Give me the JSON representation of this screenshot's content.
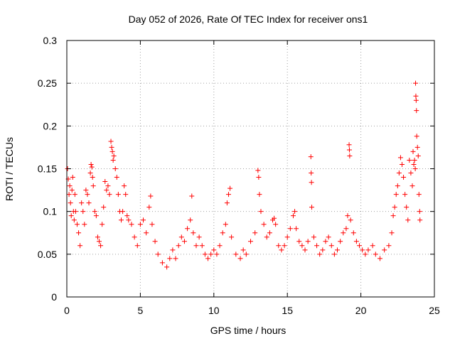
{
  "chart_data": {
    "type": "scatter",
    "title": "Day 052 of 2026, Rate Of TEC Index for receiver ons1",
    "xlabel": "GPS time / hours",
    "ylabel": "ROTI / TECUs",
    "xlim": [
      0,
      25
    ],
    "ylim": [
      0,
      0.3
    ],
    "x_ticks": [
      "0",
      "5",
      "10",
      "15",
      "20",
      "25"
    ],
    "y_ticks": [
      "0",
      "0.05",
      "0.1",
      "0.15",
      "0.2",
      "0.25",
      "0.3"
    ],
    "x_tick_values": [
      0,
      5,
      10,
      15,
      20,
      25
    ],
    "y_tick_values": [
      0,
      0.05,
      0.1,
      0.15,
      0.2,
      0.25,
      0.3
    ],
    "grid": true,
    "marker": "+",
    "marker_color": "#ff0000",
    "series": [
      {
        "points": [
          [
            0.05,
            0.15
          ],
          [
            0.1,
            0.138
          ],
          [
            0.15,
            0.12
          ],
          [
            0.2,
            0.13
          ],
          [
            0.25,
            0.11
          ],
          [
            0.3,
            0.095
          ],
          [
            0.35,
            0.125
          ],
          [
            0.4,
            0.14
          ],
          [
            0.45,
            0.1
          ],
          [
            0.5,
            0.09
          ],
          [
            0.55,
            0.12
          ],
          [
            0.6,
            0.1
          ],
          [
            0.7,
            0.085
          ],
          [
            0.8,
            0.075
          ],
          [
            0.9,
            0.06
          ],
          [
            1.0,
            0.11
          ],
          [
            1.1,
            0.1
          ],
          [
            1.2,
            0.085
          ],
          [
            1.3,
            0.125
          ],
          [
            1.4,
            0.12
          ],
          [
            1.5,
            0.11
          ],
          [
            1.6,
            0.145
          ],
          [
            1.65,
            0.155
          ],
          [
            1.7,
            0.152
          ],
          [
            1.75,
            0.14
          ],
          [
            1.8,
            0.13
          ],
          [
            1.9,
            0.1
          ],
          [
            2.0,
            0.095
          ],
          [
            2.1,
            0.07
          ],
          [
            2.2,
            0.065
          ],
          [
            2.3,
            0.06
          ],
          [
            2.4,
            0.085
          ],
          [
            2.5,
            0.105
          ],
          [
            2.6,
            0.135
          ],
          [
            2.7,
            0.125
          ],
          [
            2.8,
            0.13
          ],
          [
            2.9,
            0.12
          ],
          [
            3.0,
            0.182
          ],
          [
            3.05,
            0.175
          ],
          [
            3.1,
            0.17
          ],
          [
            3.15,
            0.16
          ],
          [
            3.2,
            0.165
          ],
          [
            3.3,
            0.15
          ],
          [
            3.4,
            0.14
          ],
          [
            3.5,
            0.12
          ],
          [
            3.6,
            0.1
          ],
          [
            3.7,
            0.09
          ],
          [
            3.8,
            0.1
          ],
          [
            3.9,
            0.13
          ],
          [
            4.0,
            0.12
          ],
          [
            4.1,
            0.095
          ],
          [
            4.2,
            0.09
          ],
          [
            4.4,
            0.085
          ],
          [
            4.6,
            0.07
          ],
          [
            4.8,
            0.06
          ],
          [
            5.0,
            0.085
          ],
          [
            5.2,
            0.09
          ],
          [
            5.4,
            0.075
          ],
          [
            5.6,
            0.105
          ],
          [
            5.7,
            0.118
          ],
          [
            5.8,
            0.085
          ],
          [
            6.0,
            0.065
          ],
          [
            6.2,
            0.05
          ],
          [
            6.5,
            0.04
          ],
          [
            6.8,
            0.035
          ],
          [
            7.0,
            0.045
          ],
          [
            7.2,
            0.055
          ],
          [
            7.4,
            0.045
          ],
          [
            7.6,
            0.06
          ],
          [
            7.8,
            0.07
          ],
          [
            8.0,
            0.065
          ],
          [
            8.2,
            0.08
          ],
          [
            8.4,
            0.09
          ],
          [
            8.5,
            0.118
          ],
          [
            8.6,
            0.075
          ],
          [
            8.8,
            0.06
          ],
          [
            9.0,
            0.07
          ],
          [
            9.2,
            0.06
          ],
          [
            9.4,
            0.05
          ],
          [
            9.6,
            0.045
          ],
          [
            9.8,
            0.05
          ],
          [
            10.0,
            0.055
          ],
          [
            10.2,
            0.05
          ],
          [
            10.4,
            0.06
          ],
          [
            10.6,
            0.075
          ],
          [
            10.8,
            0.085
          ],
          [
            10.9,
            0.11
          ],
          [
            11.0,
            0.12
          ],
          [
            11.1,
            0.127
          ],
          [
            11.2,
            0.07
          ],
          [
            11.5,
            0.05
          ],
          [
            11.8,
            0.045
          ],
          [
            12.0,
            0.055
          ],
          [
            12.2,
            0.05
          ],
          [
            12.5,
            0.065
          ],
          [
            12.8,
            0.075
          ],
          [
            13.0,
            0.148
          ],
          [
            13.05,
            0.14
          ],
          [
            13.1,
            0.12
          ],
          [
            13.2,
            0.1
          ],
          [
            13.4,
            0.085
          ],
          [
            13.6,
            0.07
          ],
          [
            13.8,
            0.075
          ],
          [
            14.0,
            0.09
          ],
          [
            14.1,
            0.092
          ],
          [
            14.2,
            0.085
          ],
          [
            14.4,
            0.06
          ],
          [
            14.6,
            0.055
          ],
          [
            14.8,
            0.06
          ],
          [
            15.0,
            0.07
          ],
          [
            15.2,
            0.08
          ],
          [
            15.4,
            0.095
          ],
          [
            15.5,
            0.1
          ],
          [
            15.6,
            0.08
          ],
          [
            15.8,
            0.065
          ],
          [
            16.0,
            0.06
          ],
          [
            16.2,
            0.055
          ],
          [
            16.4,
            0.065
          ],
          [
            16.6,
            0.164
          ],
          [
            16.62,
            0.145
          ],
          [
            16.64,
            0.134
          ],
          [
            16.66,
            0.105
          ],
          [
            16.8,
            0.07
          ],
          [
            17.0,
            0.06
          ],
          [
            17.2,
            0.05
          ],
          [
            17.4,
            0.055
          ],
          [
            17.6,
            0.065
          ],
          [
            17.8,
            0.07
          ],
          [
            18.0,
            0.06
          ],
          [
            18.2,
            0.05
          ],
          [
            18.4,
            0.055
          ],
          [
            18.6,
            0.065
          ],
          [
            18.8,
            0.075
          ],
          [
            19.0,
            0.08
          ],
          [
            19.1,
            0.095
          ],
          [
            19.2,
            0.178
          ],
          [
            19.22,
            0.172
          ],
          [
            19.24,
            0.165
          ],
          [
            19.3,
            0.09
          ],
          [
            19.5,
            0.075
          ],
          [
            19.7,
            0.065
          ],
          [
            19.9,
            0.06
          ],
          [
            20.1,
            0.055
          ],
          [
            20.3,
            0.05
          ],
          [
            20.5,
            0.055
          ],
          [
            20.8,
            0.06
          ],
          [
            21.0,
            0.05
          ],
          [
            21.3,
            0.045
          ],
          [
            21.6,
            0.055
          ],
          [
            21.9,
            0.06
          ],
          [
            22.1,
            0.075
          ],
          [
            22.2,
            0.095
          ],
          [
            22.3,
            0.105
          ],
          [
            22.4,
            0.12
          ],
          [
            22.5,
            0.13
          ],
          [
            22.6,
            0.145
          ],
          [
            22.7,
            0.163
          ],
          [
            22.8,
            0.155
          ],
          [
            22.9,
            0.14
          ],
          [
            23.0,
            0.12
          ],
          [
            23.1,
            0.105
          ],
          [
            23.2,
            0.09
          ],
          [
            23.3,
            0.16
          ],
          [
            23.4,
            0.145
          ],
          [
            23.5,
            0.13
          ],
          [
            23.55,
            0.17
          ],
          [
            23.6,
            0.155
          ],
          [
            23.65,
            0.16
          ],
          [
            23.7,
            0.15
          ],
          [
            23.72,
            0.25
          ],
          [
            23.74,
            0.235
          ],
          [
            23.76,
            0.23
          ],
          [
            23.78,
            0.218
          ],
          [
            23.8,
            0.188
          ],
          [
            23.85,
            0.175
          ],
          [
            23.9,
            0.165
          ],
          [
            23.95,
            0.12
          ],
          [
            24.0,
            0.1
          ],
          [
            24.02,
            0.09
          ]
        ]
      }
    ]
  }
}
